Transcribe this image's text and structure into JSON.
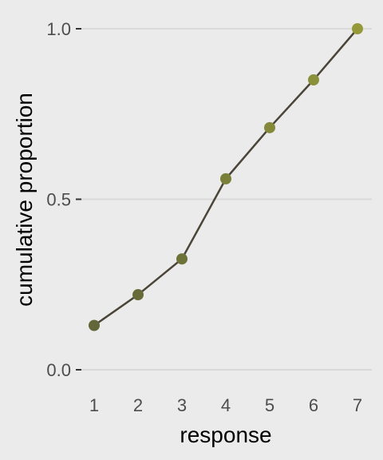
{
  "chart_data": {
    "type": "line",
    "xlabel": "response",
    "ylabel": "cumulative proportion",
    "x": [
      1,
      2,
      3,
      4,
      5,
      6,
      7
    ],
    "y": [
      0.13,
      0.22,
      0.325,
      0.56,
      0.71,
      0.85,
      1.0
    ],
    "xlim": [
      1,
      7
    ],
    "ylim": [
      0,
      1
    ],
    "x_ticks": [
      "1",
      "2",
      "3",
      "4",
      "5",
      "6",
      "7"
    ],
    "y_ticks": [
      {
        "value": 0,
        "label": "0.0"
      },
      {
        "value": 0.5,
        "label": "0.5"
      },
      {
        "value": 1,
        "label": "1.0"
      }
    ],
    "grid": "horizontal",
    "legend": "none",
    "colors": {
      "background": "#ebebeb",
      "grid": "#d9d9d9",
      "line": "#4a4538",
      "point_start": "#5a5e38",
      "point_end": "#949a3a"
    }
  }
}
